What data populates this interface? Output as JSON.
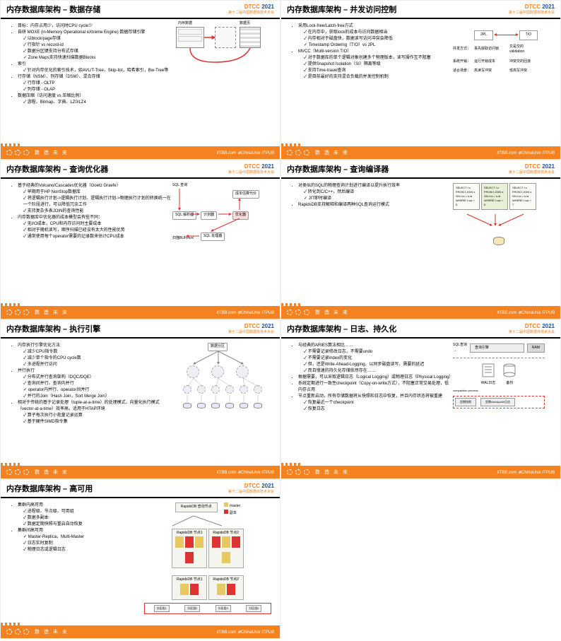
{
  "logo": {
    "prefix": "DTCC",
    "year": "2021",
    "subtitle": "第十二届中国数据库技术大会"
  },
  "footer": {
    "slogan": "数 造 未 来",
    "sponsors": "itTBB.com  ⊕ChinaUnix  ITPUB"
  },
  "colors": {
    "brand_orange": "#f58220",
    "brand_blue": "#1a509f",
    "arrow_red": "#d33333",
    "box_gray": "#e8e8e8"
  },
  "slides": [
    {
      "id": "storage",
      "title": "内存数据库架构 – 数据存储",
      "bullets": [
        {
          "text": "目标：内存占用少，访问时CPU cycle少"
        },
        {
          "text": "自研 MOXE (in-Memory Operational eXtreme Engine) 数据存储引擎",
          "sub": [
            "以block/page存储",
            "行指针 vs record-id",
            "数据分区键支持分布式存储",
            "Zone Maps支持快速扫描数据Blocks"
          ]
        },
        {
          "text": "索引",
          "sub": [
            "针对内存优化的索引技术，如AVL/T-Tree，Skip-list，哈希索引，Bw-Tree等"
          ]
        },
        {
          "text": "行存储（NSM）、列存储（DSM）、混合存储",
          "sub": [
            "行存储 - OLTP",
            "列存储 - OLAP"
          ]
        },
        {
          "text": "数据压缩（访问速度 vs 压缩比例）",
          "sub": [
            "游程、Bitmap、字典、LZ0/LZ4"
          ]
        }
      ],
      "diagram": {
        "labels": [
          "内存数据",
          "数据页",
          "缓存池"
        ]
      }
    },
    {
      "id": "concurrency",
      "title": "内存数据库架构 – 并发访问控制",
      "bullets": [
        {
          "text": "采用Lock-free/Latch-free方式",
          "sub": [
            "在内存中，获取lock的成本与访问数据相当",
            "内存相对于磁盘快，数据读写访问冲突会降低",
            "Timestamp Ordering（T/O）vs 2PL"
          ]
        },
        {
          "text": "MVCC（Multi-version T/O）",
          "sub": [
            "对于数据库的单个逻辑对象创建多个物理版本，读写操作互不阻塞",
            "提供Snapshot Isolation（SI）隔离等级",
            "支持Time-travel查询",
            "是目前最好的支持混合负载的并发控制机制"
          ]
        }
      ],
      "compare": {
        "header_left": "2PL",
        "header_right": "T/O",
        "rows": [
          {
            "label": "并发方式：",
            "left": "事先获取访问锁",
            "right": "文是交的validation"
          },
          {
            "label": "系统开销：",
            "left": "运行开锁成本",
            "right": "冲突交的回滚"
          },
          {
            "label": "适合场景：",
            "left": "高读写冲突",
            "right": "低高写冲突"
          }
        ]
      }
    },
    {
      "id": "optimizer",
      "title": "内存数据库架构 – 查询优化器",
      "bullets": [
        {
          "text": "基于经典的Volcano/Cascades优化器（Goetz Graefe）",
          "sub": [
            "早期用于HP NonStop数据库",
            "将逻辑执行计划->逻辑执行计划、逻辑执行计划->物理执行计划的转换统一在一个阶段进行，可以降低冗余工作",
            "支持复杂多表JOIN的查询性能"
          ]
        },
        {
          "text": "内存数据库中优化器的成本模型会有些不同：",
          "sub": [
            "无I/O成本，CPU和内存访问时主要成本",
            "相对于随机读写，顺序扫描已经没有太大的性能优势",
            "通常使用每个operator需要的记录数来估计CPU成本"
          ]
        }
      ],
      "flow": {
        "boxes": [
          "SQL 查询",
          "SQL 解析器",
          "计划器",
          "优化器",
          "SQL 处理器",
          "成本估算代价"
        ],
        "out_label": "执行计划",
        "in_label": "扫描BUFFER"
      }
    },
    {
      "id": "compiler",
      "title": "内存数据库架构 – 查询编译器",
      "bullets": [
        {
          "text": "对类似的SQL的物理查询计划进行编译以提升执行效率",
          "sub": [
            "转化到C/C++，然后编译",
            "JIT即时编译"
          ]
        },
        {
          "text": "RapidsDB支持解释和编译两种SQL查询运行模式"
        }
      ],
      "sql_boxes": [
        "SELECT t.c\nFROM t JOIN s\n  ON t.id = s.id\nWHERE t.val > 5",
        "SELECT t.c\nFROM t JOIN s\n  ON t.id = s.id\nWHERE t.val > 6",
        "SELECT t.c\nFROM t JOIN s\n  ON t.id = s.id\nWHERE t.val > 7"
      ]
    },
    {
      "id": "executor",
      "title": "内存数据库架构 – 执行引擎",
      "bullets": [
        {
          "text": "内存执行引擎优化方法",
          "sub": [
            "减少CPU指令数",
            "减少单个指令的CPU cycle数",
            "多进程并行访问"
          ]
        },
        {
          "text": "并行执行",
          "sub": [
            "分布式并行查询架构（DQC/DQE）",
            "查询间并行、查询内并行",
            "operator内并行、operator间并行",
            "并行的Join（Hash Join，Sort Merge Join）"
          ]
        },
        {
          "text": "相对于传统的基于记录处理（tuple-at-a-time）的处理模式，向量化执行模式（vector-at-a-time）效率高，适用于HTAP环境",
          "sub": [
            "算子每次执行小批量记录运算",
            "基于硬件SIMD指令集"
          ]
        }
      ],
      "diagram_label": "数据分区"
    },
    {
      "id": "logging",
      "title": "内存数据库架构 – 日志、持久化",
      "bullets": [
        {
          "text": "与经典的ARIES算法相比……",
          "sub": [
            "不需要记录修改日志，不需要undo",
            "不需要记录index的变化",
            "但，还是Write-Ahead-Logging，以同步磁盘读写，需要的延迟",
            "而且慢速的持久化存储依然存在……"
          ]
        },
        {
          "text": "根据需要，可以采取逻辑日志（Logical Logging）或物理日志（Physical Logging）"
        },
        {
          "text": "系统定期进行一致性checkpoint（Copy-on-write方式），不阻塞正常交易处理，低内存占用"
        },
        {
          "text": "节点重新启动，所有存储数据将从快照和日志中恢复，并且内存状态将被重建",
          "sub": [
            "恢复最近一个checkpoint",
            "恢复日志"
          ]
        }
      ],
      "log_labels": {
        "sql": "SQL查询",
        "engine": "查询引擎",
        "ram": "RAM",
        "wal": "WAL日志",
        "backup": "备份",
        "compaction": "compaction process",
        "snap": "定期快照",
        "log": "定期checkpoint日志"
      }
    },
    {
      "id": "ha",
      "title": "内存数据库架构 – 高可用",
      "bullets": [
        {
          "text": "集群内高可用",
          "sub": [
            "进程级、节点级、可用组",
            "数据多副本",
            "数据定期快照与重启自动恢复"
          ]
        },
        {
          "text": "集群间高可用",
          "sub": [
            "Master-Replica，Multi-Master",
            "日志实时复制",
            "物理日志或逻辑日志"
          ]
        }
      ],
      "ha": {
        "top": "RapidsDB 查询节点",
        "nodes": [
          "RapidsDB 节点1",
          "RapidsDB 节点2",
          "RapidsDB 节点1",
          "RapidsDB 节点2"
        ],
        "legend": [
          {
            "color": "#e8c860",
            "label": "master"
          },
          {
            "color": "#d33333",
            "label": "副本"
          }
        ],
        "labels": [
          "分区组1",
          "分区组2",
          "分区组3",
          "分区组4"
        ]
      }
    }
  ]
}
